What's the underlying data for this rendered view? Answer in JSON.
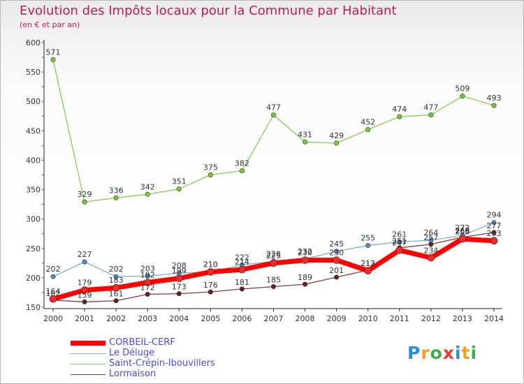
{
  "chart_data": {
    "type": "line",
    "title": "Evolution des Impôts locaux pour la Commune par Habitant",
    "subtitle": "(en € et par an)",
    "x": [
      "2000",
      "2001",
      "2002",
      "2003",
      "2004",
      "2005",
      "2006",
      "2007",
      "2008",
      "2009",
      "2010",
      "2011",
      "2012",
      "2013",
      "2014"
    ],
    "y_ticks": [
      "150",
      "200",
      "250",
      "300",
      "350",
      "400",
      "450",
      "500",
      "550",
      "600"
    ],
    "ylim": [
      150,
      600
    ],
    "grid": false,
    "legend_position": "bottom-left",
    "series": [
      {
        "name": "CORBEIL-CERF",
        "color": "#ff0000",
        "marker_color": "#e03030",
        "values": [
          164,
          179,
          183,
          192,
          199,
          210,
          214,
          225,
          230,
          230,
          212,
          247,
          234,
          266,
          263
        ],
        "labels": [
          "164",
          "179",
          "183",
          "192",
          "199",
          "210",
          "214",
          "225",
          "230",
          "230",
          "212",
          "247",
          "234",
          "266",
          "263"
        ]
      },
      {
        "name": "Le Déluge",
        "color": "#7aaed6",
        "marker_color": "#4c90d0",
        "values": [
          202,
          227,
          202,
          203,
          208,
          210,
          222,
          228,
          232,
          245,
          255,
          261,
          264,
          272,
          294
        ],
        "labels": [
          "202",
          "227",
          "202",
          "203",
          "208",
          "210",
          "222",
          "228",
          "232",
          "245",
          "255",
          "261",
          "264",
          "272",
          "294"
        ]
      },
      {
        "name": "Saint-Crépin-Ibouvillers",
        "color": "#88cc55",
        "marker_color": "#77cc33",
        "values": [
          571,
          329,
          336,
          342,
          351,
          375,
          382,
          477,
          431,
          429,
          452,
          474,
          477,
          509,
          493
        ],
        "labels": [
          "571",
          "329",
          "336",
          "342",
          "351",
          "375",
          "382",
          "477",
          "431",
          "429",
          "452",
          "474",
          "477",
          "509",
          "493"
        ]
      },
      {
        "name": "Lormaison",
        "color": "#8a3a3a",
        "marker_color": "#6a1f1f",
        "values": [
          162,
          159,
          161,
          172,
          173,
          176,
          181,
          185,
          189,
          201,
          213,
          251,
          257,
          269,
          277
        ],
        "labels": [
          "162",
          "159",
          "161",
          "172",
          "173",
          "176",
          "181",
          "185",
          "189",
          "201",
          "213",
          "251",
          "257",
          "269",
          "277"
        ]
      }
    ]
  },
  "logo": {
    "text": "Proxiti",
    "colors": [
      "#2b8fd6",
      "#f0a020",
      "#3fae49",
      "#e8402a",
      "#2b8fd6",
      "#f0a020",
      "#3fae49"
    ]
  }
}
